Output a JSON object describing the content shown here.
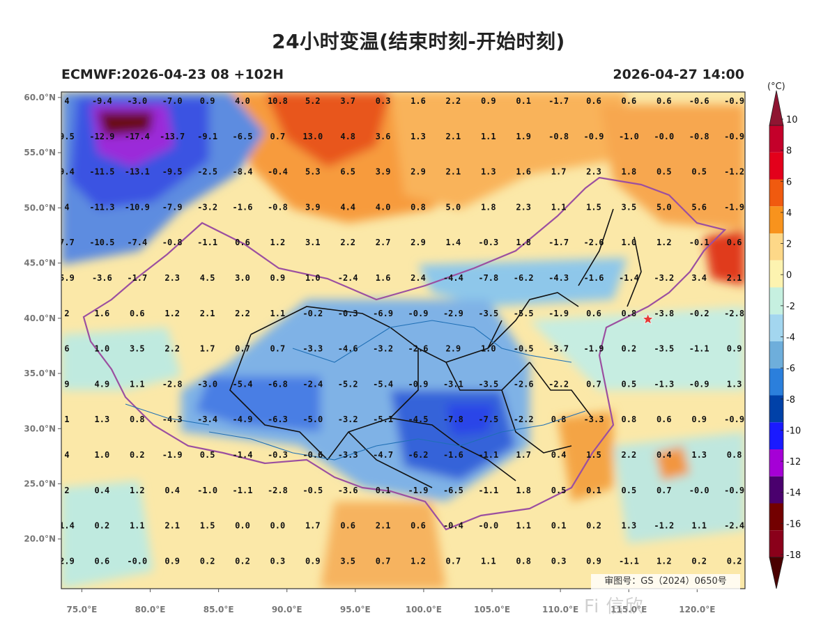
{
  "title": "24小时变温(结束时刻-开始时刻)",
  "model_run": "ECMWF:2026-04-23 08 +102H",
  "valid_time": "2026-04-27 14:00",
  "map": {
    "lon_range": [
      73.5,
      123.5
    ],
    "lat_range": [
      15.5,
      60.5
    ],
    "lon_ticks": [
      "75.0°E",
      "80.0°E",
      "85.0°E",
      "90.0°E",
      "95.0°E",
      "100.0°E",
      "105.0°E",
      "110.0°E",
      "115.0°E",
      "120.0°E"
    ],
    "lat_ticks": [
      "60.0°N",
      "55.0°N",
      "50.0°N",
      "45.0°N",
      "40.0°N",
      "35.0°N",
      "30.0°N",
      "25.0°N",
      "20.0°N"
    ],
    "marker": {
      "symbol": "star",
      "color": "#e53935",
      "lon": 116.4,
      "lat": 39.9
    },
    "grid_values": [
      [
        "4",
        "-9.4",
        "-3.0",
        "-7.0",
        "0.9",
        "4.0",
        "10.8",
        "5.2",
        "3.7",
        "0.3",
        "1.6",
        "2.2",
        "0.9",
        "0.1",
        "-1.7",
        "0.6",
        "0.6",
        "0.6",
        "-0.6",
        "-0.9"
      ],
      [
        "9.5",
        "-12.9",
        "-17.4",
        "-13.7",
        "-9.1",
        "-6.5",
        "0.7",
        "13.0",
        "4.8",
        "3.6",
        "1.3",
        "2.1",
        "1.1",
        "1.9",
        "-0.8",
        "-0.9",
        "-1.0",
        "-0.0",
        "-0.8",
        "-0.9"
      ],
      [
        "9.4",
        "-11.5",
        "-13.1",
        "-9.5",
        "-2.5",
        "-8.4",
        "-0.4",
        "5.3",
        "6.5",
        "3.9",
        "2.9",
        "2.1",
        "1.3",
        "1.6",
        "1.7",
        "2.3",
        "1.8",
        "0.5",
        "0.5",
        "-1.2"
      ],
      [
        "4",
        "-11.3",
        "-10.9",
        "-7.9",
        "-3.2",
        "-1.6",
        "-0.8",
        "3.9",
        "4.4",
        "4.0",
        "0.8",
        "5.0",
        "1.8",
        "2.3",
        "1.1",
        "1.5",
        "3.5",
        "5.0",
        "5.6",
        "-1.9"
      ],
      [
        "7.7",
        "-10.5",
        "-7.4",
        "-0.8",
        "-1.1",
        "0.6",
        "1.2",
        "3.1",
        "2.2",
        "2.7",
        "2.9",
        "1.4",
        "-0.3",
        "1.8",
        "-1.7",
        "-2.6",
        "1.0",
        "1.2",
        "-0.1",
        "0.6"
      ],
      [
        "5.9",
        "-3.6",
        "-1.7",
        "2.3",
        "4.5",
        "3.0",
        "0.9",
        "1.0",
        "-2.4",
        "1.6",
        "2.4",
        "-4.4",
        "-7.8",
        "-6.2",
        "-4.3",
        "-1.6",
        "-1.4",
        "-3.2",
        "3.4",
        "2.1"
      ],
      [
        "2",
        "1.6",
        "0.6",
        "1.2",
        "2.1",
        "2.2",
        "1.1",
        "-0.2",
        "-0.3",
        "-6.9",
        "-0.9",
        "-2.9",
        "-3.5",
        "-5.5",
        "-1.9",
        "0.6",
        "0.8",
        "-3.8",
        "-0.2",
        "-2.8"
      ],
      [
        "6",
        "1.0",
        "3.5",
        "2.2",
        "1.7",
        "0.7",
        "0.7",
        "-3.3",
        "-4.6",
        "-3.2",
        "-2.6",
        "2.9",
        "1.0",
        "-0.5",
        "-3.7",
        "-1.9",
        "0.2",
        "-3.5",
        "-1.1",
        "0.9"
      ],
      [
        "9",
        "4.9",
        "1.1",
        "-2.8",
        "-3.0",
        "-5.4",
        "-6.8",
        "-2.4",
        "-5.2",
        "-5.4",
        "-0.9",
        "-3.1",
        "-3.5",
        "-2.6",
        "-2.2",
        "0.7",
        "0.5",
        "-1.3",
        "-0.9",
        "1.3"
      ],
      [
        "1",
        "1.3",
        "0.8",
        "-4.3",
        "-3.4",
        "-4.9",
        "-6.3",
        "-5.0",
        "-3.2",
        "-5.1",
        "-4.5",
        "-7.8",
        "-7.5",
        "-2.2",
        "0.8",
        "-3.3",
        "0.8",
        "0.6",
        "0.9",
        "-0.9"
      ],
      [
        "4",
        "1.0",
        "0.2",
        "-1.9",
        "0.5",
        "-1.4",
        "-0.3",
        "-0.6",
        "-3.3",
        "-4.7",
        "-6.2",
        "-1.6",
        "-1.1",
        "1.7",
        "0.4",
        "1.5",
        "2.2",
        "0.4",
        "1.3",
        "0.8"
      ],
      [
        "2",
        "0.4",
        "1.2",
        "0.4",
        "-1.0",
        "-1.1",
        "-2.8",
        "-0.5",
        "-3.6",
        "0.1",
        "-1.9",
        "-6.5",
        "-1.1",
        "1.8",
        "0.5",
        "0.1",
        "0.5",
        "0.7",
        "-0.0",
        "-0.9"
      ],
      [
        "1.4",
        "0.2",
        "1.1",
        "2.1",
        "1.5",
        "0.0",
        "0.0",
        "1.7",
        "0.6",
        "2.1",
        "0.6",
        "-0.4",
        "-0.0",
        "1.1",
        "0.1",
        "0.2",
        "1.3",
        "-1.2",
        "1.1",
        "-2.4"
      ],
      [
        "2.9",
        "0.6",
        "-0.0",
        "0.9",
        "0.2",
        "0.2",
        "0.3",
        "0.9",
        "3.5",
        "0.7",
        "1.2",
        "0.7",
        "1.1",
        "0.8",
        "0.3",
        "0.9",
        "-1.1",
        "1.2",
        "0.2",
        "0.2"
      ]
    ]
  },
  "colorbar": {
    "unit": "(°C)",
    "labels": [
      "10",
      "8",
      "6",
      "4",
      "2",
      "0",
      "-2",
      "-4",
      "-6",
      "-8",
      "-10",
      "-12",
      "-14",
      "-16",
      "-18"
    ],
    "colors": [
      "#c4002a",
      "#e3001b",
      "#f05a0f",
      "#f8931d",
      "#fdd888",
      "#fdf3b0",
      "#c6f0e0",
      "#a3d6ef",
      "#6eaedb",
      "#2b7fdc",
      "#0041a8",
      "#1a1aff",
      "#a500d6",
      "#4a006e",
      "#730000",
      "#8a001a"
    ],
    "top_cap": "#8f1532",
    "bottom_cap": "#4a0000"
  },
  "credit": "审图号：GS（2024）0650号",
  "watermark": "Fi 信欣"
}
